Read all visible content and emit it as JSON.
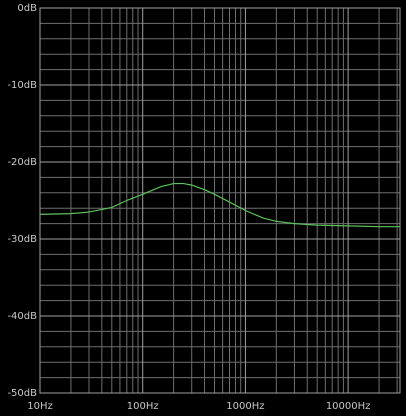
{
  "chart_data": {
    "type": "line",
    "xscale": "log",
    "grid": true,
    "color": "#5cc25c",
    "x": [
      10,
      20,
      30,
      50,
      70,
      100,
      150,
      200,
      250,
      300,
      400,
      500,
      700,
      1000,
      1500,
      2000,
      3000,
      5000,
      10000,
      20000,
      32000
    ],
    "values": [
      -26.8,
      -26.7,
      -26.5,
      -25.9,
      -25.0,
      -24.2,
      -23.2,
      -22.8,
      -22.8,
      -23.0,
      -23.6,
      -24.2,
      -25.2,
      -26.3,
      -27.3,
      -27.7,
      -28.0,
      -28.2,
      -28.3,
      -28.4,
      -28.4
    ],
    "xlim": [
      10,
      32000
    ],
    "ylim": [
      -50,
      0
    ],
    "xticks": [
      {
        "value": 10,
        "label": "10Hz"
      },
      {
        "value": 100,
        "label": "100Hz"
      },
      {
        "value": 1000,
        "label": "1000Hz"
      },
      {
        "value": 10000,
        "label": "10000Hz"
      }
    ],
    "yticks": [
      {
        "value": 0,
        "label": "0dB"
      },
      {
        "value": -10,
        "label": "-10dB"
      },
      {
        "value": -20,
        "label": "-20dB"
      },
      {
        "value": -30,
        "label": "-30dB"
      },
      {
        "value": -40,
        "label": "-40dB"
      },
      {
        "value": -50,
        "label": "-50dB"
      }
    ],
    "xgrid": [
      20,
      30,
      40,
      50,
      60,
      70,
      80,
      90,
      200,
      300,
      400,
      500,
      600,
      700,
      800,
      900,
      2000,
      3000,
      4000,
      5000,
      6000,
      7000,
      8000,
      9000,
      20000,
      30000
    ],
    "ygrid": [
      -2,
      -4,
      -6,
      -8,
      -12,
      -14,
      -16,
      -18,
      -22,
      -24,
      -26,
      -28,
      -32,
      -34,
      -36,
      -38,
      -42,
      -44,
      -46,
      -48
    ]
  }
}
